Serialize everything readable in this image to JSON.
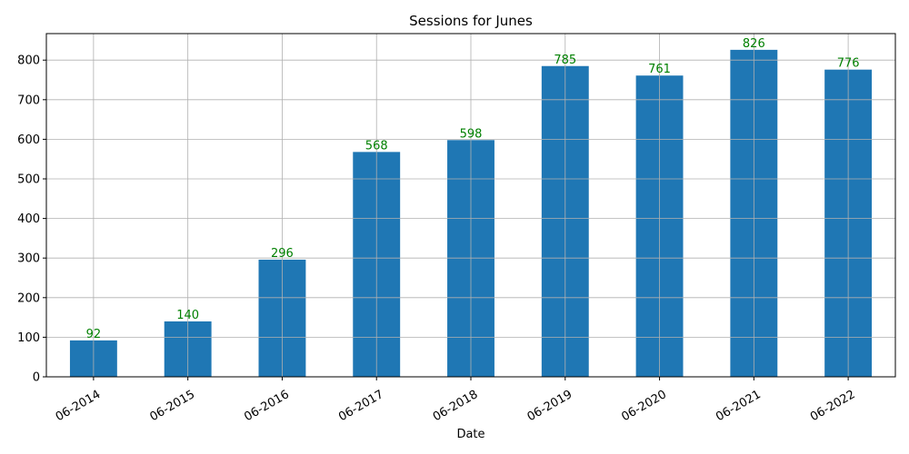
{
  "chart_data": {
    "type": "bar",
    "title": "Sessions for Junes",
    "xlabel": "Date",
    "ylabel": "",
    "categories": [
      "06-2014",
      "06-2015",
      "06-2016",
      "06-2017",
      "06-2018",
      "06-2019",
      "06-2020",
      "06-2021",
      "06-2022"
    ],
    "values": [
      92,
      140,
      296,
      568,
      598,
      785,
      761,
      826,
      776
    ],
    "ylim": [
      0,
      867
    ],
    "yticks": [
      0,
      100,
      200,
      300,
      400,
      500,
      600,
      700,
      800
    ],
    "grid": true,
    "bar_color": "#1f77b4",
    "label_color": "#008000",
    "grid_color": "#b0b0b0"
  }
}
